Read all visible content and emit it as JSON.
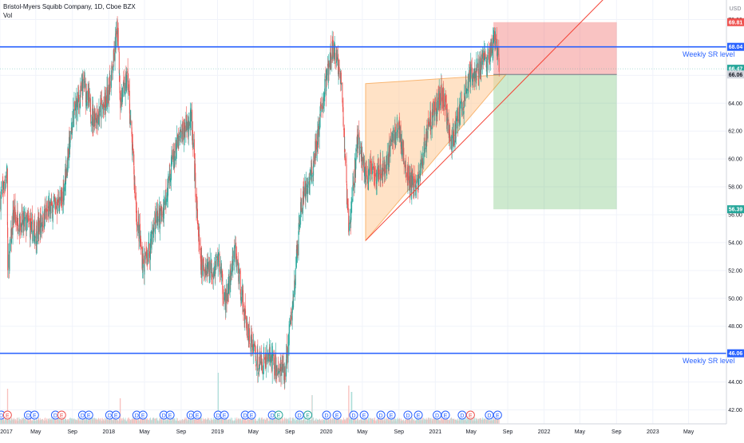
{
  "header": {
    "title": "Bristol-Myers Squibb Company, 1D, Cboe BZX",
    "volume_label": "Vol"
  },
  "price_axis": {
    "currency": "USD",
    "ticks": [
      "42.00",
      "44.00",
      "46.00",
      "48.00",
      "50.00",
      "52.00",
      "54.00",
      "56.00",
      "58.00",
      "60.00",
      "62.00",
      "64.00",
      "66.00",
      "68.00",
      "70.00"
    ],
    "badges": [
      {
        "value": "69.81",
        "color": "#ef5350",
        "text_color": "#ffffff"
      },
      {
        "value": "68.04",
        "color": "#2962ff",
        "text_color": "#ffffff"
      },
      {
        "value": "66.47",
        "color": "#26a69a",
        "text_color": "#ffffff"
      },
      {
        "value": "66.06",
        "color": "#d1d4dc",
        "text_color": "#131722"
      },
      {
        "value": "56.39",
        "color": "#26a69a",
        "text_color": "#ffffff"
      },
      {
        "value": "46.06",
        "color": "#2962ff",
        "text_color": "#ffffff"
      }
    ]
  },
  "time_axis": {
    "ticks": [
      {
        "label": "2017",
        "date": "2017-01-01"
      },
      {
        "label": "May",
        "date": "2017-05-01"
      },
      {
        "label": "Sep",
        "date": "2017-09-01"
      },
      {
        "label": "2018",
        "date": "2018-01-01"
      },
      {
        "label": "May",
        "date": "2018-05-01"
      },
      {
        "label": "Sep",
        "date": "2018-09-01"
      },
      {
        "label": "2019",
        "date": "2019-01-01"
      },
      {
        "label": "May",
        "date": "2019-05-01"
      },
      {
        "label": "Sep",
        "date": "2019-09-01"
      },
      {
        "label": "2020",
        "date": "2020-01-01"
      },
      {
        "label": "May",
        "date": "2020-05-01"
      },
      {
        "label": "Sep",
        "date": "2020-09-01"
      },
      {
        "label": "2021",
        "date": "2021-01-01"
      },
      {
        "label": "May",
        "date": "2021-05-01"
      },
      {
        "label": "Sep",
        "date": "2021-09-01"
      },
      {
        "label": "2022",
        "date": "2022-01-01"
      },
      {
        "label": "May",
        "date": "2022-05-01"
      },
      {
        "label": "Sep",
        "date": "2022-09-01"
      },
      {
        "label": "2023",
        "date": "2023-01-01"
      },
      {
        "label": "May",
        "date": "2023-05-01"
      }
    ]
  },
  "annotations": {
    "sr_upper": {
      "label": "Weekly SR level",
      "price": 68.04
    },
    "sr_lower": {
      "label": "Weekly SR level",
      "price": 46.06
    },
    "event_markers": [
      {
        "date": "2017-01-05",
        "type": "D",
        "color": "#2962ff"
      },
      {
        "date": "2017-01-26",
        "type": "E",
        "color": "#ef5350"
      },
      {
        "date": "2017-04-06",
        "type": "D",
        "color": "#2962ff"
      },
      {
        "date": "2017-04-27",
        "type": "E",
        "color": "#2962ff"
      },
      {
        "date": "2017-07-06",
        "type": "D",
        "color": "#2962ff"
      },
      {
        "date": "2017-07-27",
        "type": "E",
        "color": "#ef5350"
      },
      {
        "date": "2017-10-05",
        "type": "D",
        "color": "#2962ff"
      },
      {
        "date": "2017-10-26",
        "type": "E",
        "color": "#2962ff"
      },
      {
        "date": "2018-01-04",
        "type": "D",
        "color": "#2962ff"
      },
      {
        "date": "2018-01-25",
        "type": "E",
        "color": "#2962ff"
      },
      {
        "date": "2018-04-05",
        "type": "D",
        "color": "#2962ff"
      },
      {
        "date": "2018-04-26",
        "type": "E",
        "color": "#2962ff"
      },
      {
        "date": "2018-07-05",
        "type": "D",
        "color": "#2962ff"
      },
      {
        "date": "2018-07-26",
        "type": "E",
        "color": "#2962ff"
      },
      {
        "date": "2018-10-04",
        "type": "D",
        "color": "#2962ff"
      },
      {
        "date": "2018-10-25",
        "type": "E",
        "color": "#2962ff"
      },
      {
        "date": "2019-01-03",
        "type": "D",
        "color": "#2962ff"
      },
      {
        "date": "2019-01-24",
        "type": "E",
        "color": "#2962ff"
      },
      {
        "date": "2019-04-04",
        "type": "D",
        "color": "#2962ff"
      },
      {
        "date": "2019-04-25",
        "type": "E",
        "color": "#2962ff"
      },
      {
        "date": "2019-07-04",
        "type": "D",
        "color": "#2962ff"
      },
      {
        "date": "2019-07-25",
        "type": "E",
        "color": "#26a69a"
      },
      {
        "date": "2019-10-03",
        "type": "D",
        "color": "#2962ff"
      },
      {
        "date": "2019-10-31",
        "type": "E",
        "color": "#26a69a"
      },
      {
        "date": "2020-01-02",
        "type": "D",
        "color": "#2962ff"
      },
      {
        "date": "2020-02-06",
        "type": "E",
        "color": "#2962ff"
      },
      {
        "date": "2020-04-02",
        "type": "D",
        "color": "#2962ff"
      },
      {
        "date": "2020-05-07",
        "type": "E",
        "color": "#2962ff"
      },
      {
        "date": "2020-07-02",
        "type": "D",
        "color": "#2962ff"
      },
      {
        "date": "2020-08-06",
        "type": "E",
        "color": "#2962ff"
      },
      {
        "date": "2020-10-01",
        "type": "D",
        "color": "#2962ff"
      },
      {
        "date": "2020-11-05",
        "type": "E",
        "color": "#2962ff"
      },
      {
        "date": "2021-01-07",
        "type": "D",
        "color": "#2962ff"
      },
      {
        "date": "2021-02-04",
        "type": "E",
        "color": "#2962ff"
      },
      {
        "date": "2021-04-01",
        "type": "D",
        "color": "#2962ff"
      },
      {
        "date": "2021-04-29",
        "type": "E",
        "color": "#ef5350"
      },
      {
        "date": "2021-07-01",
        "type": "D",
        "color": "#2962ff"
      },
      {
        "date": "2021-07-29",
        "type": "E",
        "color": "#2962ff"
      }
    ]
  },
  "chart_data": {
    "type": "candlestick",
    "title": "Bristol-Myers Squibb Company, 1D, Cboe BZX",
    "ylim": [
      41,
      71.4
    ],
    "xlim": [
      "2017-01-01",
      "2023-09-05"
    ],
    "up_color": "#26a69a",
    "down_color": "#ef5350",
    "grid": true,
    "series": [
      {
        "name": "price-path",
        "x": [
          "2017-01-03",
          "2017-01-25",
          "2017-01-27",
          "2017-02-15",
          "2017-03-10",
          "2017-04-05",
          "2017-04-28",
          "2017-06-08",
          "2017-07-28",
          "2017-09-05",
          "2017-10-10",
          "2017-11-08",
          "2017-12-20",
          "2018-01-12",
          "2018-01-31",
          "2018-02-09",
          "2018-03-05",
          "2018-04-05",
          "2018-04-27",
          "2018-05-15",
          "2018-06-08",
          "2018-06-28",
          "2018-08-01",
          "2018-09-10",
          "2018-10-05",
          "2018-11-05",
          "2018-12-24",
          "2019-01-04",
          "2019-01-28",
          "2019-03-01",
          "2019-04-10",
          "2019-05-20",
          "2019-06-25",
          "2019-07-25",
          "2019-08-15",
          "2019-09-10",
          "2019-10-08",
          "2019-11-15",
          "2019-12-20",
          "2020-01-21",
          "2020-02-19",
          "2020-03-16",
          "2020-03-26",
          "2020-04-15",
          "2020-05-14",
          "2020-06-10",
          "2020-07-15",
          "2020-08-10",
          "2020-09-01",
          "2020-09-25",
          "2020-10-30",
          "2020-12-10",
          "2021-01-25",
          "2021-02-26",
          "2021-03-15",
          "2021-04-06",
          "2021-04-30",
          "2021-05-20",
          "2021-06-10",
          "2021-06-24",
          "2021-07-16",
          "2021-07-28",
          "2021-08-03"
        ],
        "values": [
          57.2,
          59.0,
          51.8,
          56.0,
          55.4,
          55.3,
          54.6,
          56.2,
          57.0,
          63.2,
          65.3,
          63.0,
          63.8,
          66.2,
          69.5,
          64.2,
          65.8,
          55.8,
          52.3,
          53.4,
          55.8,
          55.9,
          59.8,
          62.2,
          62.8,
          52.2,
          52.2,
          53.0,
          49.5,
          53.4,
          47.8,
          45.2,
          45.8,
          44.8,
          44.6,
          49.5,
          56.5,
          59.0,
          64.2,
          67.8,
          66.4,
          54.4,
          56.8,
          61.4,
          58.8,
          59.2,
          59.2,
          61.5,
          62.3,
          58.8,
          57.8,
          62.6,
          64.8,
          61.0,
          62.7,
          64.0,
          66.5,
          66.0,
          67.4,
          66.9,
          68.5,
          67.5,
          66.47
        ]
      },
      {
        "name": "volume",
        "x": [
          "2017-01-27",
          "2018-02-09",
          "2019-01-04",
          "2019-11-15",
          "2020-03-16",
          "2020-03-26"
        ],
        "values": [
          0.55,
          0.4,
          0.8,
          0.45,
          0.6,
          0.5
        ]
      }
    ],
    "drawings": {
      "ascending_triangle": {
        "start": "2020-05-12",
        "pivot_low": 54.15,
        "apex": "2021-08-26",
        "top_price": 65.4,
        "apex_price": 66.06,
        "fill": "#ffcc99",
        "stroke": "#f57c00"
      },
      "support_projection": {
        "start": "2020-05-12",
        "start_price": 54.15,
        "end": "2022-09-01",
        "end_price": 72.4,
        "color": "#f44336"
      },
      "short_position": {
        "start": "2021-07-15",
        "end": "2022-09-02",
        "entry": 66.06,
        "stop": 69.81,
        "target": 56.39
      }
    }
  }
}
